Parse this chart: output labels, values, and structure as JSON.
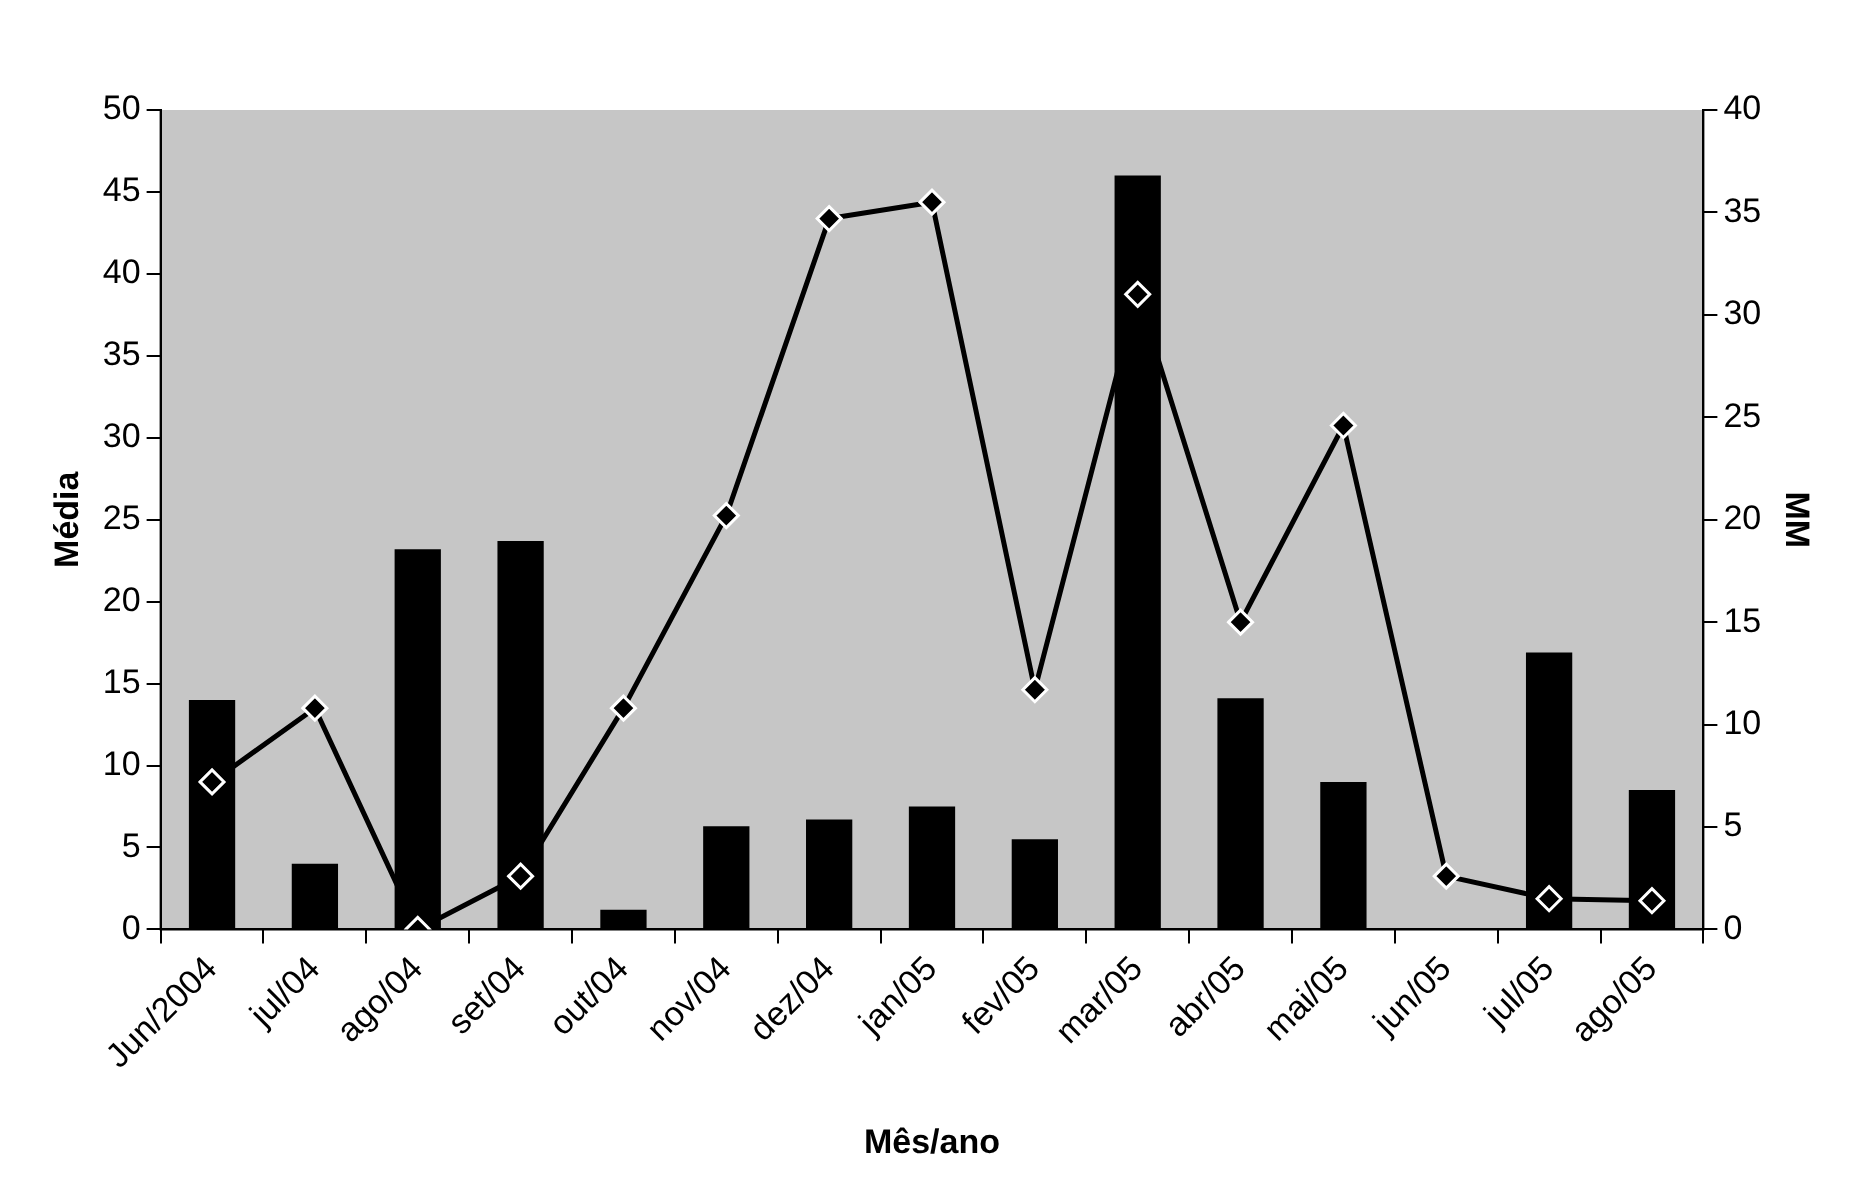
{
  "chart_data": {
    "type": "bar",
    "xlabel": "Mês/ano",
    "ylabel": "Média",
    "y2label": "MM",
    "categories": [
      "Jun/2004",
      "jul/04",
      "ago/04",
      "set/04",
      "out/04",
      "nov/04",
      "dez/04",
      "jan/05",
      "fev/05",
      "mar/05",
      "abr/05",
      "mai/05",
      "jun/05",
      "jul/05",
      "ago/05"
    ],
    "series": [
      {
        "type": "bar",
        "color": "#000000",
        "values": [
          14.0,
          4.0,
          23.2,
          23.7,
          1.2,
          6.3,
          6.7,
          7.5,
          5.5,
          46.0,
          14.1,
          9.0,
          0,
          16.9,
          8.5
        ]
      },
      {
        "type": "line",
        "axis": "y2",
        "color": "#000000",
        "values": [
          7.2,
          10.8,
          0,
          2.6,
          10.8,
          20.2,
          34.7,
          35.5,
          11.7,
          31,
          15.0,
          24.6,
          2.6,
          1.5,
          1.4
        ]
      }
    ],
    "ylim": [
      0,
      50
    ],
    "yticks": [
      0,
      5,
      10,
      15,
      20,
      25,
      30,
      35,
      40,
      45,
      50
    ],
    "y2lim": [
      0,
      40
    ],
    "y2ticks": [
      0,
      5,
      10,
      15,
      20,
      25,
      30,
      35,
      40
    ],
    "grid": false,
    "legend": false,
    "marker": "diamond",
    "line_style": "solid"
  }
}
